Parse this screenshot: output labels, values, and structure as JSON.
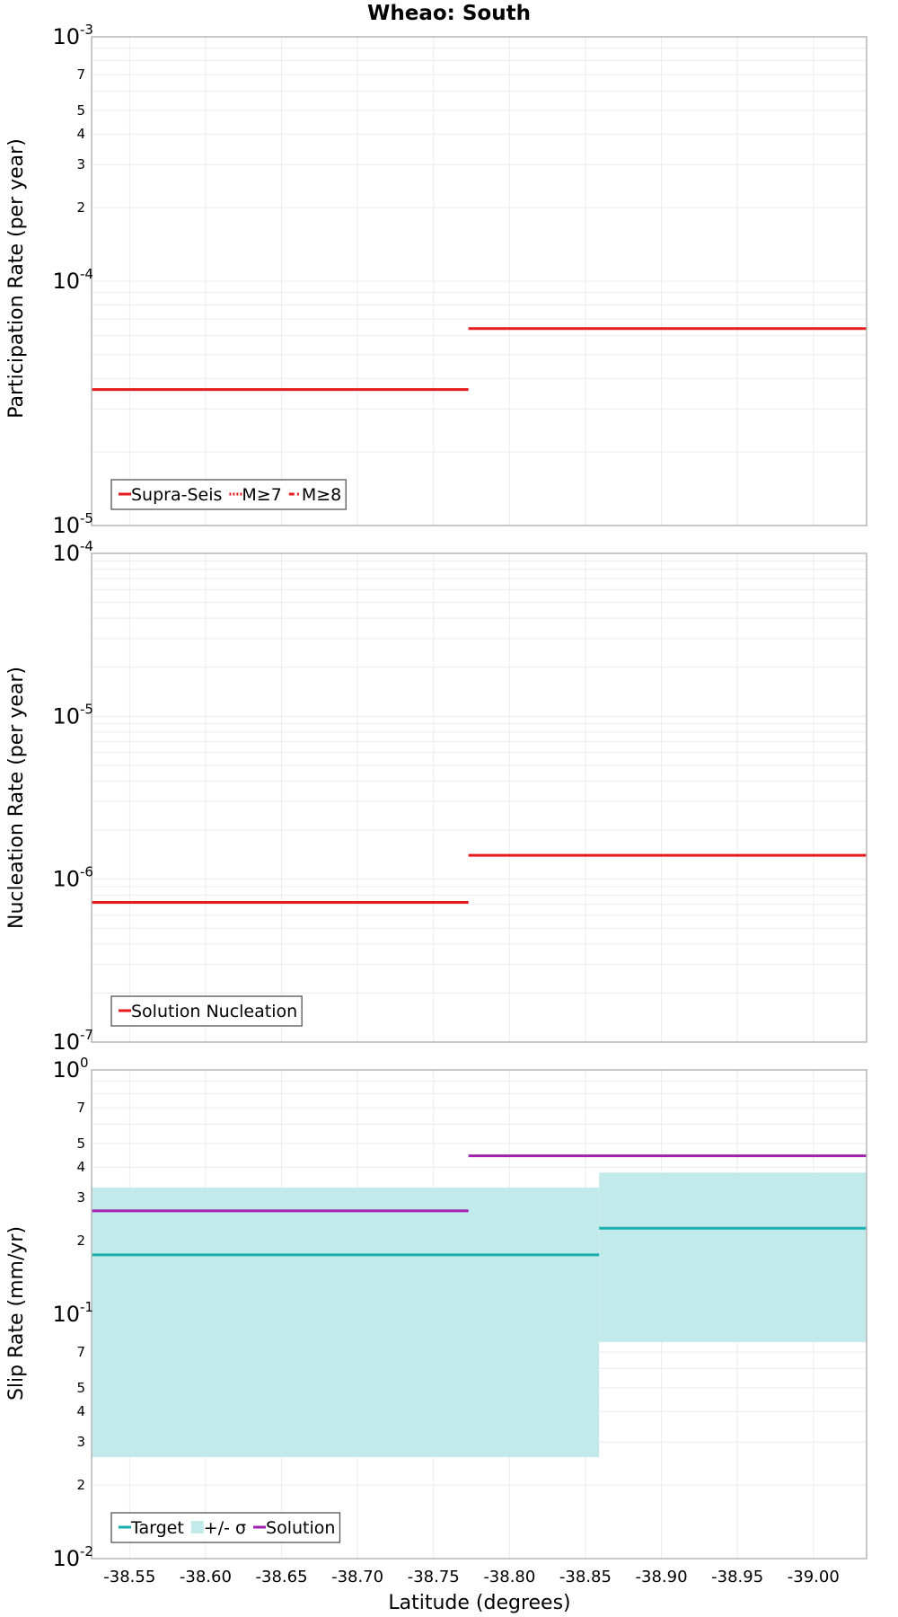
{
  "chart_data": {
    "title": "Wheao: South",
    "xlabel": "Latitude (degrees)",
    "xlim": [
      -38.525,
      -39.035
    ],
    "xticks": [
      -38.55,
      -38.6,
      -38.65,
      -38.7,
      -38.75,
      -38.8,
      -38.85,
      -38.9,
      -38.95,
      -39.0
    ],
    "xtick_labels": [
      "-38.55",
      "-38.60",
      "-38.65",
      "-38.70",
      "-38.75",
      "-38.80",
      "-38.85",
      "-38.90",
      "-38.95",
      "-39.00"
    ],
    "panels": [
      {
        "type": "line",
        "ylabel": "Participation Rate (per year)",
        "yscale": "log",
        "ylim": [
          1e-05,
          0.001
        ],
        "decade_labels": [
          {
            "base": "10",
            "exp": "-3"
          },
          {
            "base": "10",
            "exp": "-4"
          },
          {
            "base": "10",
            "exp": "-5"
          }
        ],
        "minor_labels": [
          "7",
          "5",
          "4",
          "3",
          "2"
        ],
        "legend": [
          {
            "label": "Supra-Seis",
            "color": "#e41a1c",
            "style": "solid"
          },
          {
            "label": "M≥7",
            "color": "#e41a1c",
            "style": "dotted"
          },
          {
            "label": "M≥8",
            "color": "#e41a1c",
            "style": "dashdot"
          }
        ],
        "series": [
          {
            "name": "Supra-Seis",
            "color": "#e41a1c",
            "steps": [
              {
                "x0": -38.525,
                "x1": -38.773,
                "y": 3.6e-05
              },
              {
                "x0": -38.773,
                "x1": -39.035,
                "y": 6.4e-05
              }
            ]
          }
        ]
      },
      {
        "type": "line",
        "ylabel": "Nucleation Rate (per year)",
        "yscale": "log",
        "ylim": [
          1e-07,
          0.0001
        ],
        "decade_labels": [
          {
            "base": "10",
            "exp": "-4"
          },
          {
            "base": "10",
            "exp": "-5"
          },
          {
            "base": "10",
            "exp": "-6"
          },
          {
            "base": "10",
            "exp": "-7"
          }
        ],
        "minor_labels": [],
        "legend": [
          {
            "label": "Solution Nucleation",
            "color": "#e41a1c",
            "style": "solid"
          }
        ],
        "series": [
          {
            "name": "Solution Nucleation",
            "color": "#e41a1c",
            "steps": [
              {
                "x0": -38.525,
                "x1": -38.773,
                "y": 7.2e-07
              },
              {
                "x0": -38.773,
                "x1": -39.035,
                "y": 1.4e-06
              }
            ]
          }
        ]
      },
      {
        "type": "line",
        "ylabel": "Slip Rate (mm/yr)",
        "yscale": "log",
        "ylim": [
          0.01,
          1.0
        ],
        "decade_labels": [
          {
            "base": "10",
            "exp": "0"
          },
          {
            "base": "10",
            "exp": "-1"
          },
          {
            "base": "10",
            "exp": "-2"
          }
        ],
        "minor_labels": [
          "7",
          "5",
          "4",
          "3",
          "2",
          "7",
          "5",
          "4",
          "3",
          "2"
        ],
        "legend": [
          {
            "label": "Target",
            "color": "#1aafaf",
            "style": "solid"
          },
          {
            "label": "+/- σ",
            "color": "#c2eaea",
            "style": "fill"
          },
          {
            "label": "Solution",
            "color": "#a020b0",
            "style": "solid"
          }
        ],
        "bands": [
          {
            "name": "+/- σ",
            "color": "#c2eaea",
            "steps": [
              {
                "x0": -38.525,
                "x1": -38.859,
                "ylow": 0.026,
                "yhigh": 0.33
              },
              {
                "x0": -38.859,
                "x1": -39.035,
                "ylow": 0.077,
                "yhigh": 0.38
              }
            ]
          }
        ],
        "series": [
          {
            "name": "Target",
            "color": "#1aafaf",
            "steps": [
              {
                "x0": -38.525,
                "x1": -38.859,
                "y": 0.175
              },
              {
                "x0": -38.859,
                "x1": -39.035,
                "y": 0.225
              }
            ]
          },
          {
            "name": "Solution",
            "color": "#a020b0",
            "steps": [
              {
                "x0": -38.525,
                "x1": -38.773,
                "y": 0.265
              },
              {
                "x0": -38.773,
                "x1": -39.035,
                "y": 0.445
              }
            ]
          }
        ]
      }
    ]
  }
}
